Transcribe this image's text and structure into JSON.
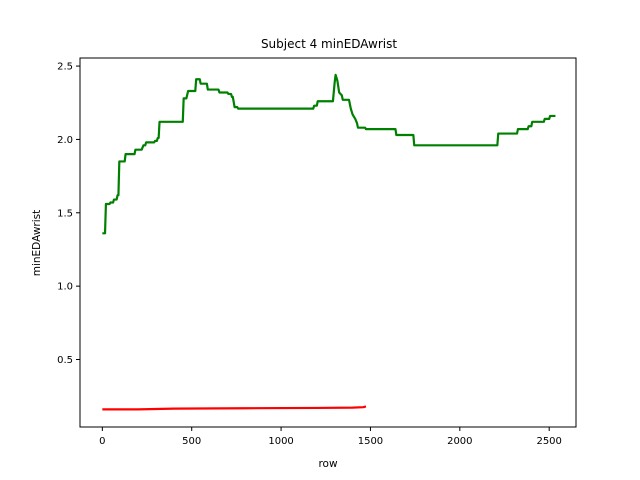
{
  "chart_data": {
    "type": "line",
    "title": "Subject 4 minEDAwrist",
    "xlabel": "row",
    "ylabel": "minEDAwrist",
    "xlim": [
      -125,
      2650
    ],
    "ylim": [
      0.04,
      2.555
    ],
    "xticks": [
      0,
      500,
      1000,
      1500,
      2000,
      2500
    ],
    "yticks": [
      0.5,
      1.0,
      1.5,
      2.0,
      2.5
    ],
    "xtick_labels": [
      "0",
      "500",
      "1000",
      "1500",
      "2000",
      "2500"
    ],
    "ytick_labels": [
      "0.5",
      "1.0",
      "1.5",
      "2.0",
      "2.5"
    ],
    "grid": false,
    "series": [
      {
        "color": "#008000",
        "step": true,
        "points": [
          [
            0,
            1.36
          ],
          [
            15,
            1.36
          ],
          [
            20,
            1.56
          ],
          [
            40,
            1.56
          ],
          [
            45,
            1.57
          ],
          [
            60,
            1.57
          ],
          [
            65,
            1.59
          ],
          [
            80,
            1.59
          ],
          [
            85,
            1.62
          ],
          [
            90,
            1.62
          ],
          [
            95,
            1.85
          ],
          [
            125,
            1.85
          ],
          [
            130,
            1.9
          ],
          [
            180,
            1.9
          ],
          [
            185,
            1.93
          ],
          [
            220,
            1.93
          ],
          [
            230,
            1.96
          ],
          [
            240,
            1.96
          ],
          [
            245,
            1.98
          ],
          [
            290,
            1.98
          ],
          [
            295,
            1.99
          ],
          [
            305,
            1.99
          ],
          [
            310,
            2.01
          ],
          [
            315,
            2.01
          ],
          [
            320,
            2.12
          ],
          [
            450,
            2.12
          ],
          [
            455,
            2.28
          ],
          [
            470,
            2.28
          ],
          [
            480,
            2.33
          ],
          [
            520,
            2.33
          ],
          [
            525,
            2.41
          ],
          [
            545,
            2.41
          ],
          [
            550,
            2.38
          ],
          [
            585,
            2.38
          ],
          [
            590,
            2.34
          ],
          [
            650,
            2.34
          ],
          [
            655,
            2.32
          ],
          [
            700,
            2.32
          ],
          [
            705,
            2.31
          ],
          [
            720,
            2.31
          ],
          [
            725,
            2.29
          ],
          [
            730,
            2.29
          ],
          [
            740,
            2.22
          ],
          [
            755,
            2.22
          ],
          [
            760,
            2.21
          ],
          [
            1180,
            2.21
          ],
          [
            1185,
            2.23
          ],
          [
            1200,
            2.23
          ],
          [
            1205,
            2.26
          ],
          [
            1290,
            2.26
          ],
          [
            1300,
            2.39
          ],
          [
            1305,
            2.44
          ],
          [
            1315,
            2.4
          ],
          [
            1325,
            2.32
          ],
          [
            1340,
            2.3
          ],
          [
            1345,
            2.27
          ],
          [
            1380,
            2.27
          ],
          [
            1390,
            2.21
          ],
          [
            1400,
            2.17
          ],
          [
            1415,
            2.14
          ],
          [
            1425,
            2.11
          ],
          [
            1430,
            2.08
          ],
          [
            1470,
            2.08
          ],
          [
            1475,
            2.07
          ],
          [
            1640,
            2.07
          ],
          [
            1645,
            2.03
          ],
          [
            1740,
            2.03
          ],
          [
            1745,
            1.96
          ],
          [
            2210,
            1.96
          ],
          [
            2215,
            2.04
          ],
          [
            2320,
            2.04
          ],
          [
            2325,
            2.07
          ],
          [
            2380,
            2.07
          ],
          [
            2385,
            2.09
          ],
          [
            2400,
            2.09
          ],
          [
            2405,
            2.12
          ],
          [
            2470,
            2.12
          ],
          [
            2475,
            2.14
          ],
          [
            2500,
            2.14
          ],
          [
            2505,
            2.16
          ],
          [
            2535,
            2.16
          ]
        ]
      },
      {
        "color": "#ff0000",
        "step": false,
        "points": [
          [
            0,
            0.16
          ],
          [
            200,
            0.16
          ],
          [
            400,
            0.165
          ],
          [
            800,
            0.168
          ],
          [
            1200,
            0.17
          ],
          [
            1400,
            0.172
          ],
          [
            1460,
            0.175
          ],
          [
            1475,
            0.18
          ]
        ]
      }
    ]
  }
}
